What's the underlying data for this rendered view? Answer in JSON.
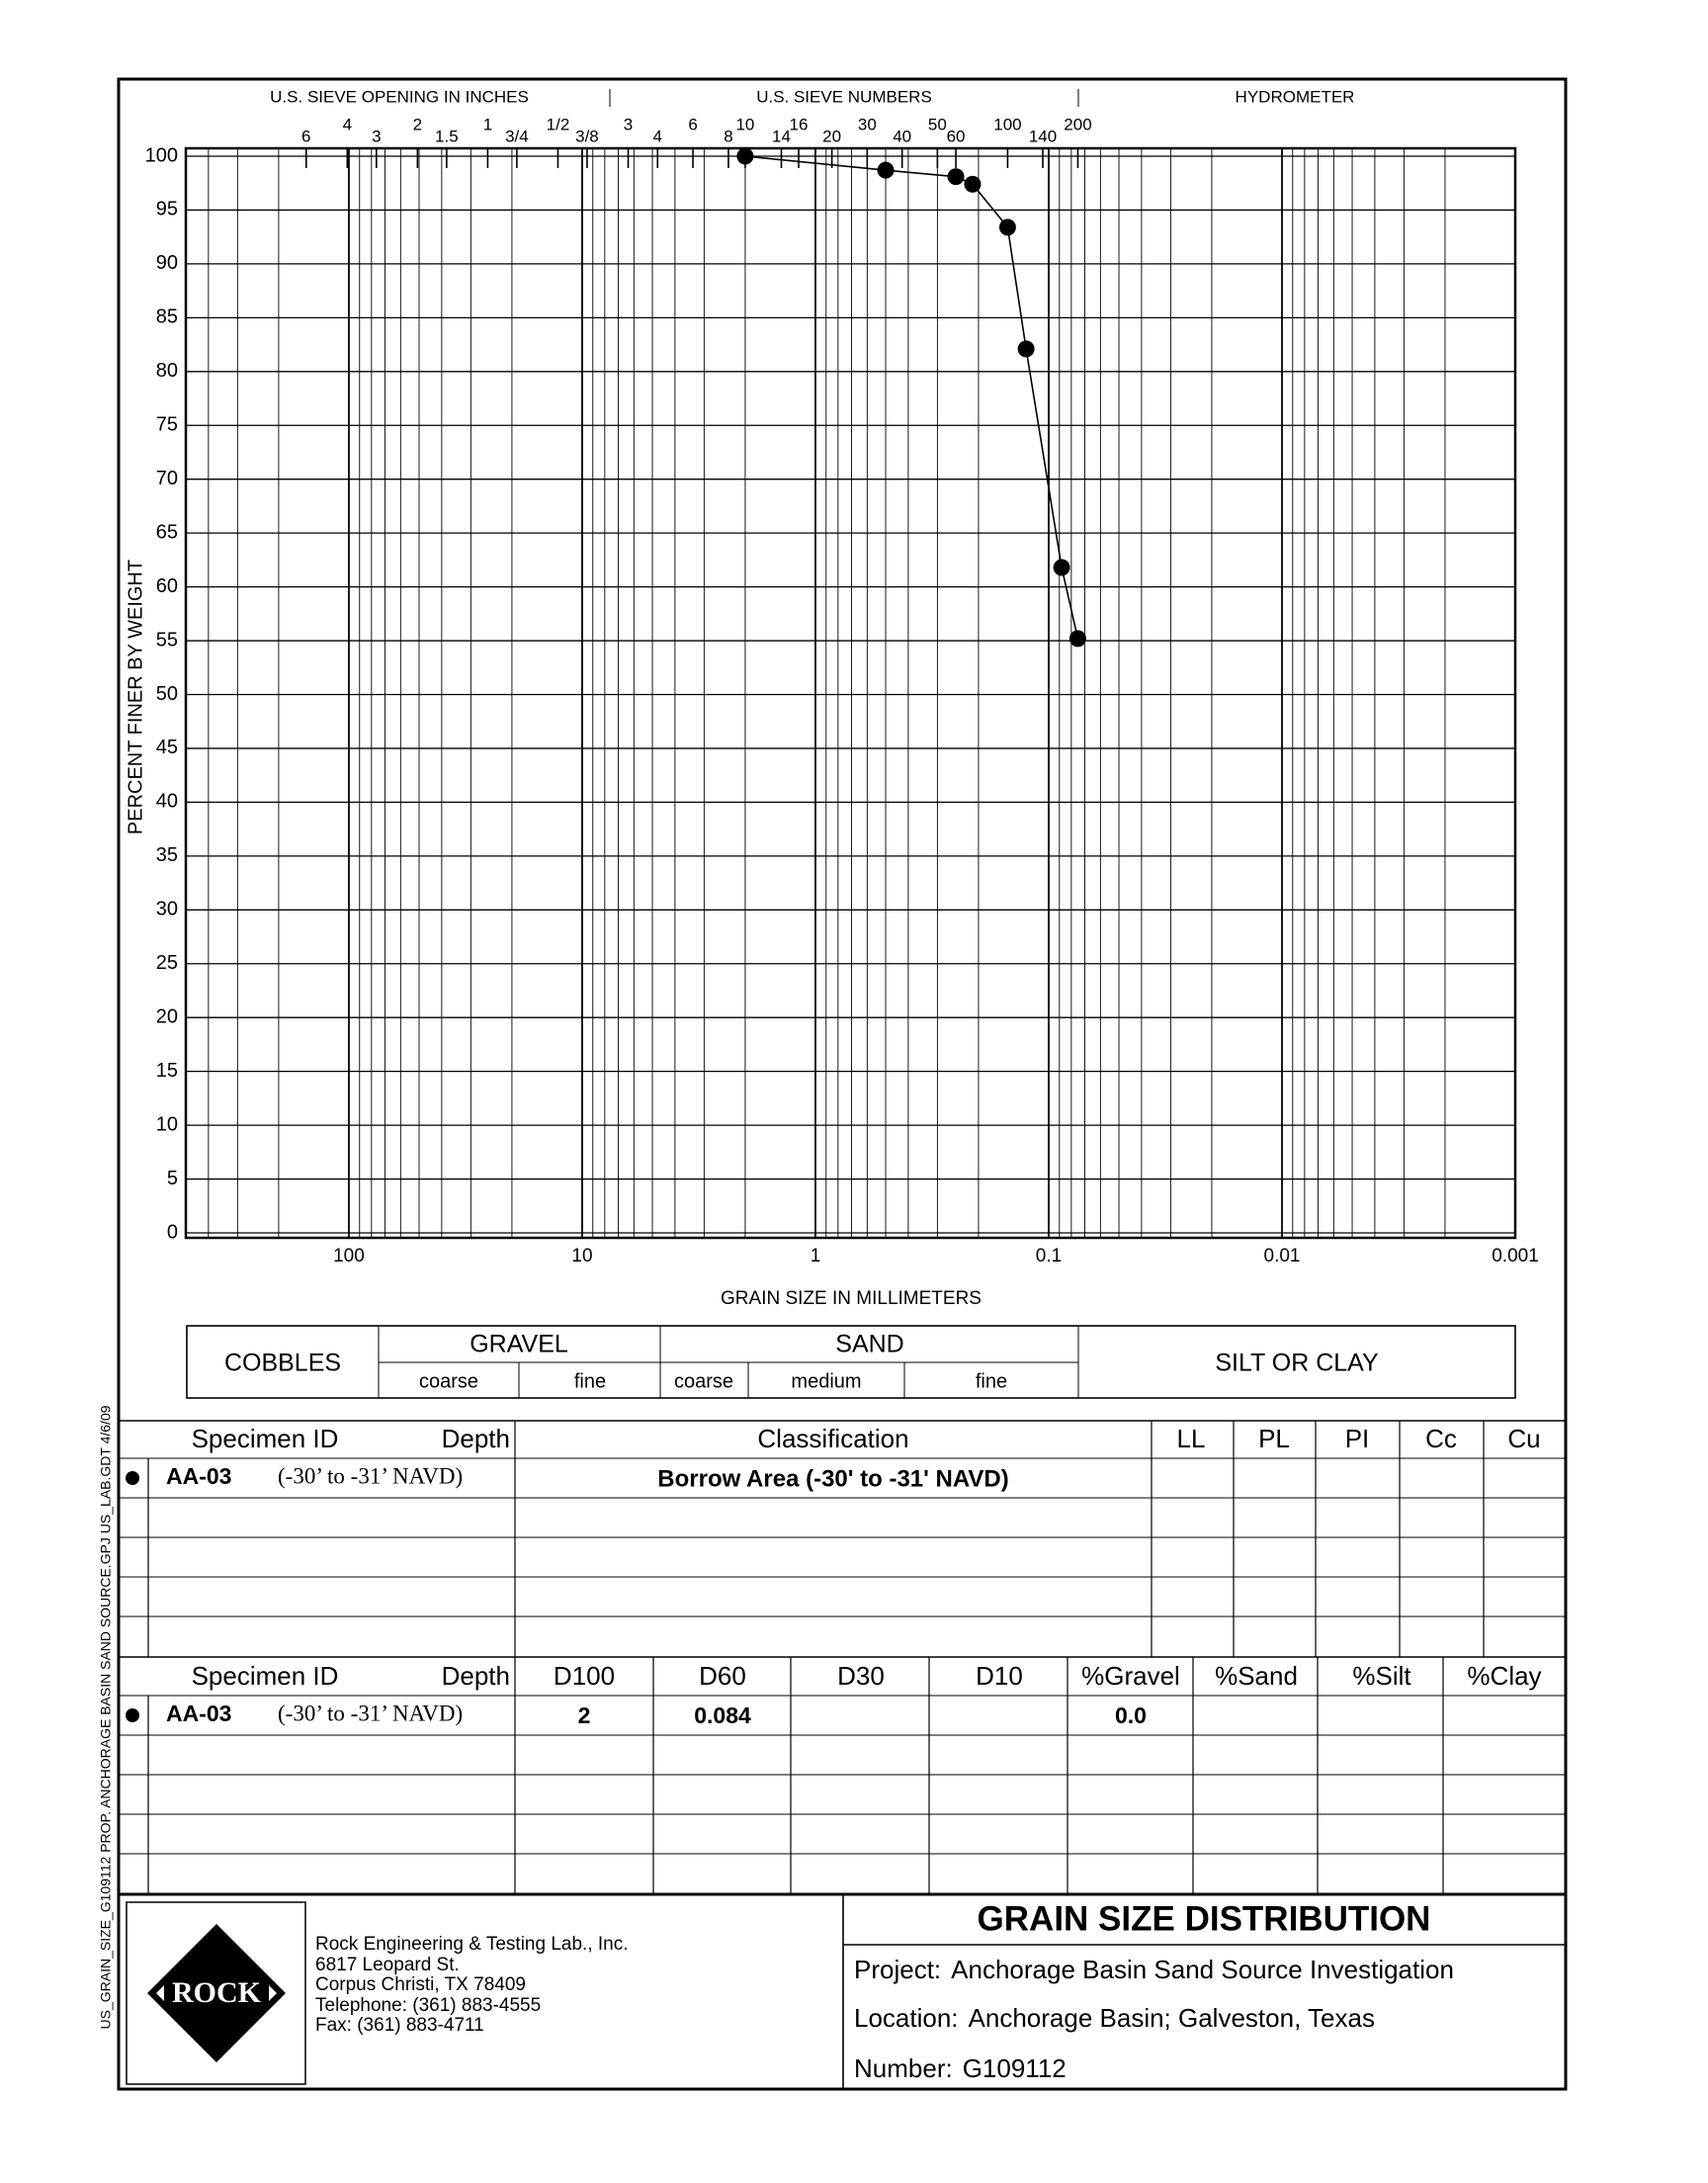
{
  "side_note": "US_GRAIN_SIZE_G109112 PROP. ANCHORAGE BASIN SAND SOURCE.GPJ US_LAB.GDT 4/6/09",
  "chart_data": {
    "type": "line",
    "top_headers": [
      "U.S. SIEVE OPENING IN INCHES",
      "U.S. SIEVE NUMBERS",
      "HYDROMETER"
    ],
    "x_label": "GRAIN SIZE IN MILLIMETERS",
    "y_label": "PERCENT FINER BY WEIGHT",
    "x": [
      2,
      0.5,
      0.25,
      0.212,
      0.15,
      0.125,
      0.088,
      0.075
    ],
    "series": [
      {
        "name": "AA-03",
        "color": "#000000",
        "values": [
          100,
          98.7,
          98.1,
          97.4,
          93.4,
          82.1,
          61.8,
          55.2
        ]
      }
    ],
    "xscale": "log",
    "xlim": [
      500,
      0.001
    ],
    "xticks": [
      100,
      10,
      1,
      0.1,
      0.01,
      0.001
    ],
    "x2ticks": [
      {
        "value": 152.4,
        "label": "6"
      },
      {
        "value": 101.6,
        "label": "4"
      },
      {
        "value": 76.2,
        "label": "3"
      },
      {
        "value": 50.8,
        "label": "2"
      },
      {
        "value": 38.1,
        "label": "1.5"
      },
      {
        "value": 25.4,
        "label": "1"
      },
      {
        "value": 19.05,
        "label": "3/4"
      },
      {
        "value": 12.7,
        "label": "1/2"
      },
      {
        "value": 9.525,
        "label": "3/8"
      },
      {
        "value": 6.35,
        "label": "3"
      },
      {
        "value": 4.75,
        "label": "4"
      },
      {
        "value": 3.35,
        "label": "6"
      },
      {
        "value": 2.36,
        "label": "8"
      },
      {
        "value": 2.0,
        "label": "10"
      },
      {
        "value": 1.4,
        "label": "14"
      },
      {
        "value": 1.18,
        "label": "16"
      },
      {
        "value": 0.85,
        "label": "20"
      },
      {
        "value": 0.6,
        "label": "30"
      },
      {
        "value": 0.425,
        "label": "40"
      },
      {
        "value": 0.3,
        "label": "50"
      },
      {
        "value": 0.25,
        "label": "60"
      },
      {
        "value": 0.15,
        "label": "100"
      },
      {
        "value": 0.106,
        "label": "140"
      },
      {
        "value": 0.075,
        "label": "200"
      }
    ],
    "ylim": [
      0,
      100
    ],
    "yticks": [
      0,
      5,
      10,
      15,
      20,
      25,
      30,
      35,
      40,
      45,
      50,
      55,
      60,
      65,
      70,
      75,
      80,
      85,
      90,
      95,
      100
    ],
    "grid": true
  },
  "soil_classes": {
    "cobbles": "COBBLES",
    "gravel": "GRAVEL",
    "gravel_coarse": "coarse",
    "gravel_fine": "fine",
    "sand": "SAND",
    "sand_coarse": "coarse",
    "sand_medium": "medium",
    "sand_fine": "fine",
    "silt_clay": "SILT OR CLAY"
  },
  "classification_table": {
    "headers": [
      "Specimen ID",
      "Depth",
      "Classification",
      "LL",
      "PL",
      "PI",
      "Cc",
      "Cu"
    ],
    "rows": [
      {
        "specimen_id": "AA-03",
        "depth": "(-30’ to -31’ NAVD)",
        "classification": "Borrow Area (-30' to -31' NAVD)"
      }
    ]
  },
  "size_table": {
    "headers": [
      "Specimen ID",
      "Depth",
      "D100",
      "D60",
      "D30",
      "D10",
      "%Gravel",
      "%Sand",
      "%Silt",
      "%Clay"
    ],
    "rows": [
      {
        "specimen_id": "AA-03",
        "depth": "(-30’ to -31’ NAVD)",
        "d100": "2",
        "d60": "0.084",
        "gravel": "0.0"
      }
    ]
  },
  "company": {
    "logo": "ROCK",
    "lines": [
      "Rock Engineering & Testing Lab., Inc.",
      "6817 Leopard St.",
      "Corpus Christi, TX 78409",
      "Telephone:  (361) 883-4555",
      "Fax:  (361) 883-4711"
    ]
  },
  "report": {
    "title": "GRAIN SIZE DISTRIBUTION",
    "project_label": "Project:",
    "project": "Anchorage Basin Sand Source Investigation",
    "location_label": "Location:",
    "location": "Anchorage Basin; Galveston, Texas",
    "number_label": "Number:",
    "number": "G109112"
  }
}
